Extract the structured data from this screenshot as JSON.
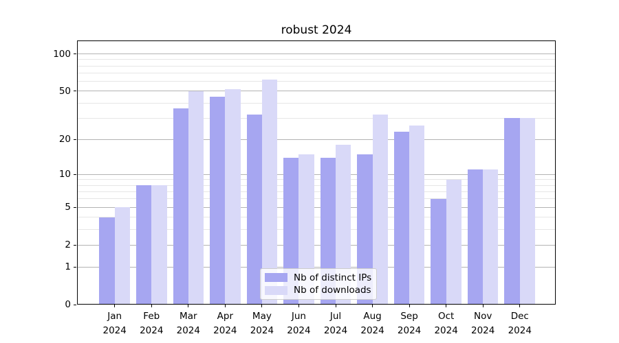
{
  "chart_data": {
    "type": "bar",
    "title": "robust 2024",
    "xlabel": "",
    "ylabel": "",
    "categories": [
      "Jan 2024",
      "Feb 2024",
      "Mar 2024",
      "Apr 2024",
      "May 2024",
      "Jun 2024",
      "Jul 2024",
      "Aug 2024",
      "Sep 2024",
      "Oct 2024",
      "Nov 2024",
      "Dec 2024"
    ],
    "series": [
      {
        "name": "Nb of distinct IPs",
        "color": "#a6a6f1",
        "values": [
          4,
          8,
          36,
          45,
          32,
          14,
          14,
          15,
          23,
          6,
          11,
          30
        ]
      },
      {
        "name": "Nb of downloads",
        "color": "#d9d9f8",
        "values": [
          5,
          8,
          50,
          52,
          62,
          15,
          18,
          32,
          26,
          9,
          11,
          30
        ]
      }
    ],
    "y_axis": {
      "scale": "log1p",
      "major_ticks": [
        0,
        1,
        2,
        5,
        10,
        20,
        50,
        100
      ],
      "minor_gridlines": [
        3,
        4,
        6,
        7,
        8,
        9,
        30,
        40,
        60,
        70,
        80,
        90
      ],
      "top_value": 128
    },
    "legend": {
      "position": "lower center",
      "entries": [
        "Nb of distinct IPs",
        "Nb of downloads"
      ]
    },
    "grid": true,
    "colors": {
      "major_grid": "#b3b3b3",
      "minor_grid": "#e6e6e6",
      "axis": "#000000",
      "legend_border": "#cccccc"
    }
  }
}
